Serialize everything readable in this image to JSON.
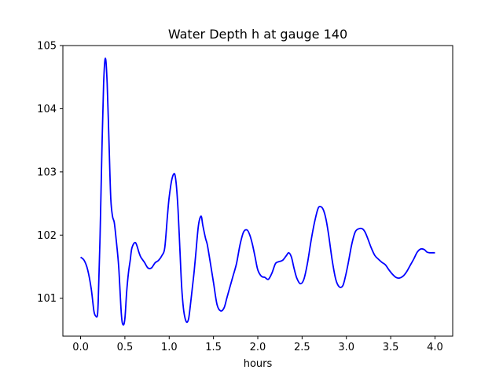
{
  "chart_data": {
    "type": "line",
    "title": "Water Depth h at gauge 140",
    "xlabel": "hours",
    "ylabel": "",
    "xlim": [
      -0.2,
      4.2
    ],
    "ylim": [
      100.4,
      105.0
    ],
    "xticks": [
      0.0,
      0.5,
      1.0,
      1.5,
      2.0,
      2.5,
      3.0,
      3.5,
      4.0
    ],
    "xtick_labels": [
      "0.0",
      "0.5",
      "1.0",
      "1.5",
      "2.0",
      "2.5",
      "3.0",
      "3.5",
      "4.0"
    ],
    "yticks": [
      101,
      102,
      103,
      104,
      105
    ],
    "ytick_labels": [
      "101",
      "102",
      "103",
      "104",
      "105"
    ],
    "grid": false,
    "series": [
      {
        "color": "#0000ff",
        "x": [
          0.0,
          0.04,
          0.08,
          0.12,
          0.15,
          0.17,
          0.19,
          0.2,
          0.22,
          0.24,
          0.26,
          0.28,
          0.3,
          0.32,
          0.34,
          0.36,
          0.38,
          0.4,
          0.43,
          0.46,
          0.48,
          0.5,
          0.52,
          0.54,
          0.56,
          0.58,
          0.62,
          0.66,
          0.68,
          0.72,
          0.76,
          0.8,
          0.84,
          0.88,
          0.92,
          0.95,
          0.98,
          1.0,
          1.03,
          1.06,
          1.08,
          1.1,
          1.12,
          1.14,
          1.16,
          1.18,
          1.2,
          1.22,
          1.24,
          1.26,
          1.28,
          1.3,
          1.33,
          1.36,
          1.38,
          1.41,
          1.43,
          1.46,
          1.5,
          1.54,
          1.58,
          1.62,
          1.65,
          1.68,
          1.72,
          1.76,
          1.8,
          1.84,
          1.88,
          1.91,
          1.94,
          1.97,
          2.0,
          2.04,
          2.08,
          2.12,
          2.16,
          2.2,
          2.24,
          2.28,
          2.32,
          2.35,
          2.38,
          2.41,
          2.44,
          2.48,
          2.52,
          2.56,
          2.6,
          2.64,
          2.68,
          2.71,
          2.74,
          2.77,
          2.8,
          2.84,
          2.88,
          2.92,
          2.96,
          2.99,
          3.02,
          3.06,
          3.1,
          3.14,
          3.18,
          3.21,
          3.24,
          3.28,
          3.32,
          3.36,
          3.4,
          3.44,
          3.48,
          3.52,
          3.56,
          3.6,
          3.64,
          3.68,
          3.72,
          3.76,
          3.8,
          3.84,
          3.88,
          3.91,
          3.94,
          3.97,
          4.0
        ],
        "y": [
          101.65,
          101.6,
          101.45,
          101.15,
          100.8,
          100.72,
          100.73,
          101.0,
          102.0,
          103.3,
          104.4,
          104.8,
          104.4,
          103.5,
          102.6,
          102.3,
          102.2,
          101.95,
          101.5,
          100.75,
          100.58,
          100.68,
          101.1,
          101.4,
          101.6,
          101.8,
          101.88,
          101.72,
          101.65,
          101.57,
          101.48,
          101.48,
          101.56,
          101.6,
          101.68,
          101.8,
          102.3,
          102.6,
          102.88,
          102.97,
          102.8,
          102.4,
          101.8,
          101.2,
          100.85,
          100.68,
          100.62,
          100.68,
          100.9,
          101.15,
          101.4,
          101.7,
          102.15,
          102.3,
          102.15,
          101.95,
          101.85,
          101.6,
          101.25,
          100.9,
          100.8,
          100.85,
          101.0,
          101.15,
          101.35,
          101.55,
          101.85,
          102.05,
          102.08,
          102.0,
          101.85,
          101.65,
          101.45,
          101.35,
          101.33,
          101.3,
          101.4,
          101.55,
          101.58,
          101.6,
          101.67,
          101.72,
          101.65,
          101.47,
          101.32,
          101.23,
          101.3,
          101.55,
          101.9,
          102.2,
          102.42,
          102.45,
          102.4,
          102.25,
          102.0,
          101.6,
          101.3,
          101.18,
          101.2,
          101.35,
          101.55,
          101.85,
          102.05,
          102.1,
          102.1,
          102.05,
          101.95,
          101.8,
          101.68,
          101.62,
          101.57,
          101.53,
          101.45,
          101.38,
          101.33,
          101.32,
          101.35,
          101.42,
          101.52,
          101.62,
          101.73,
          101.78,
          101.77,
          101.73,
          101.72,
          101.72,
          101.72
        ]
      }
    ]
  }
}
